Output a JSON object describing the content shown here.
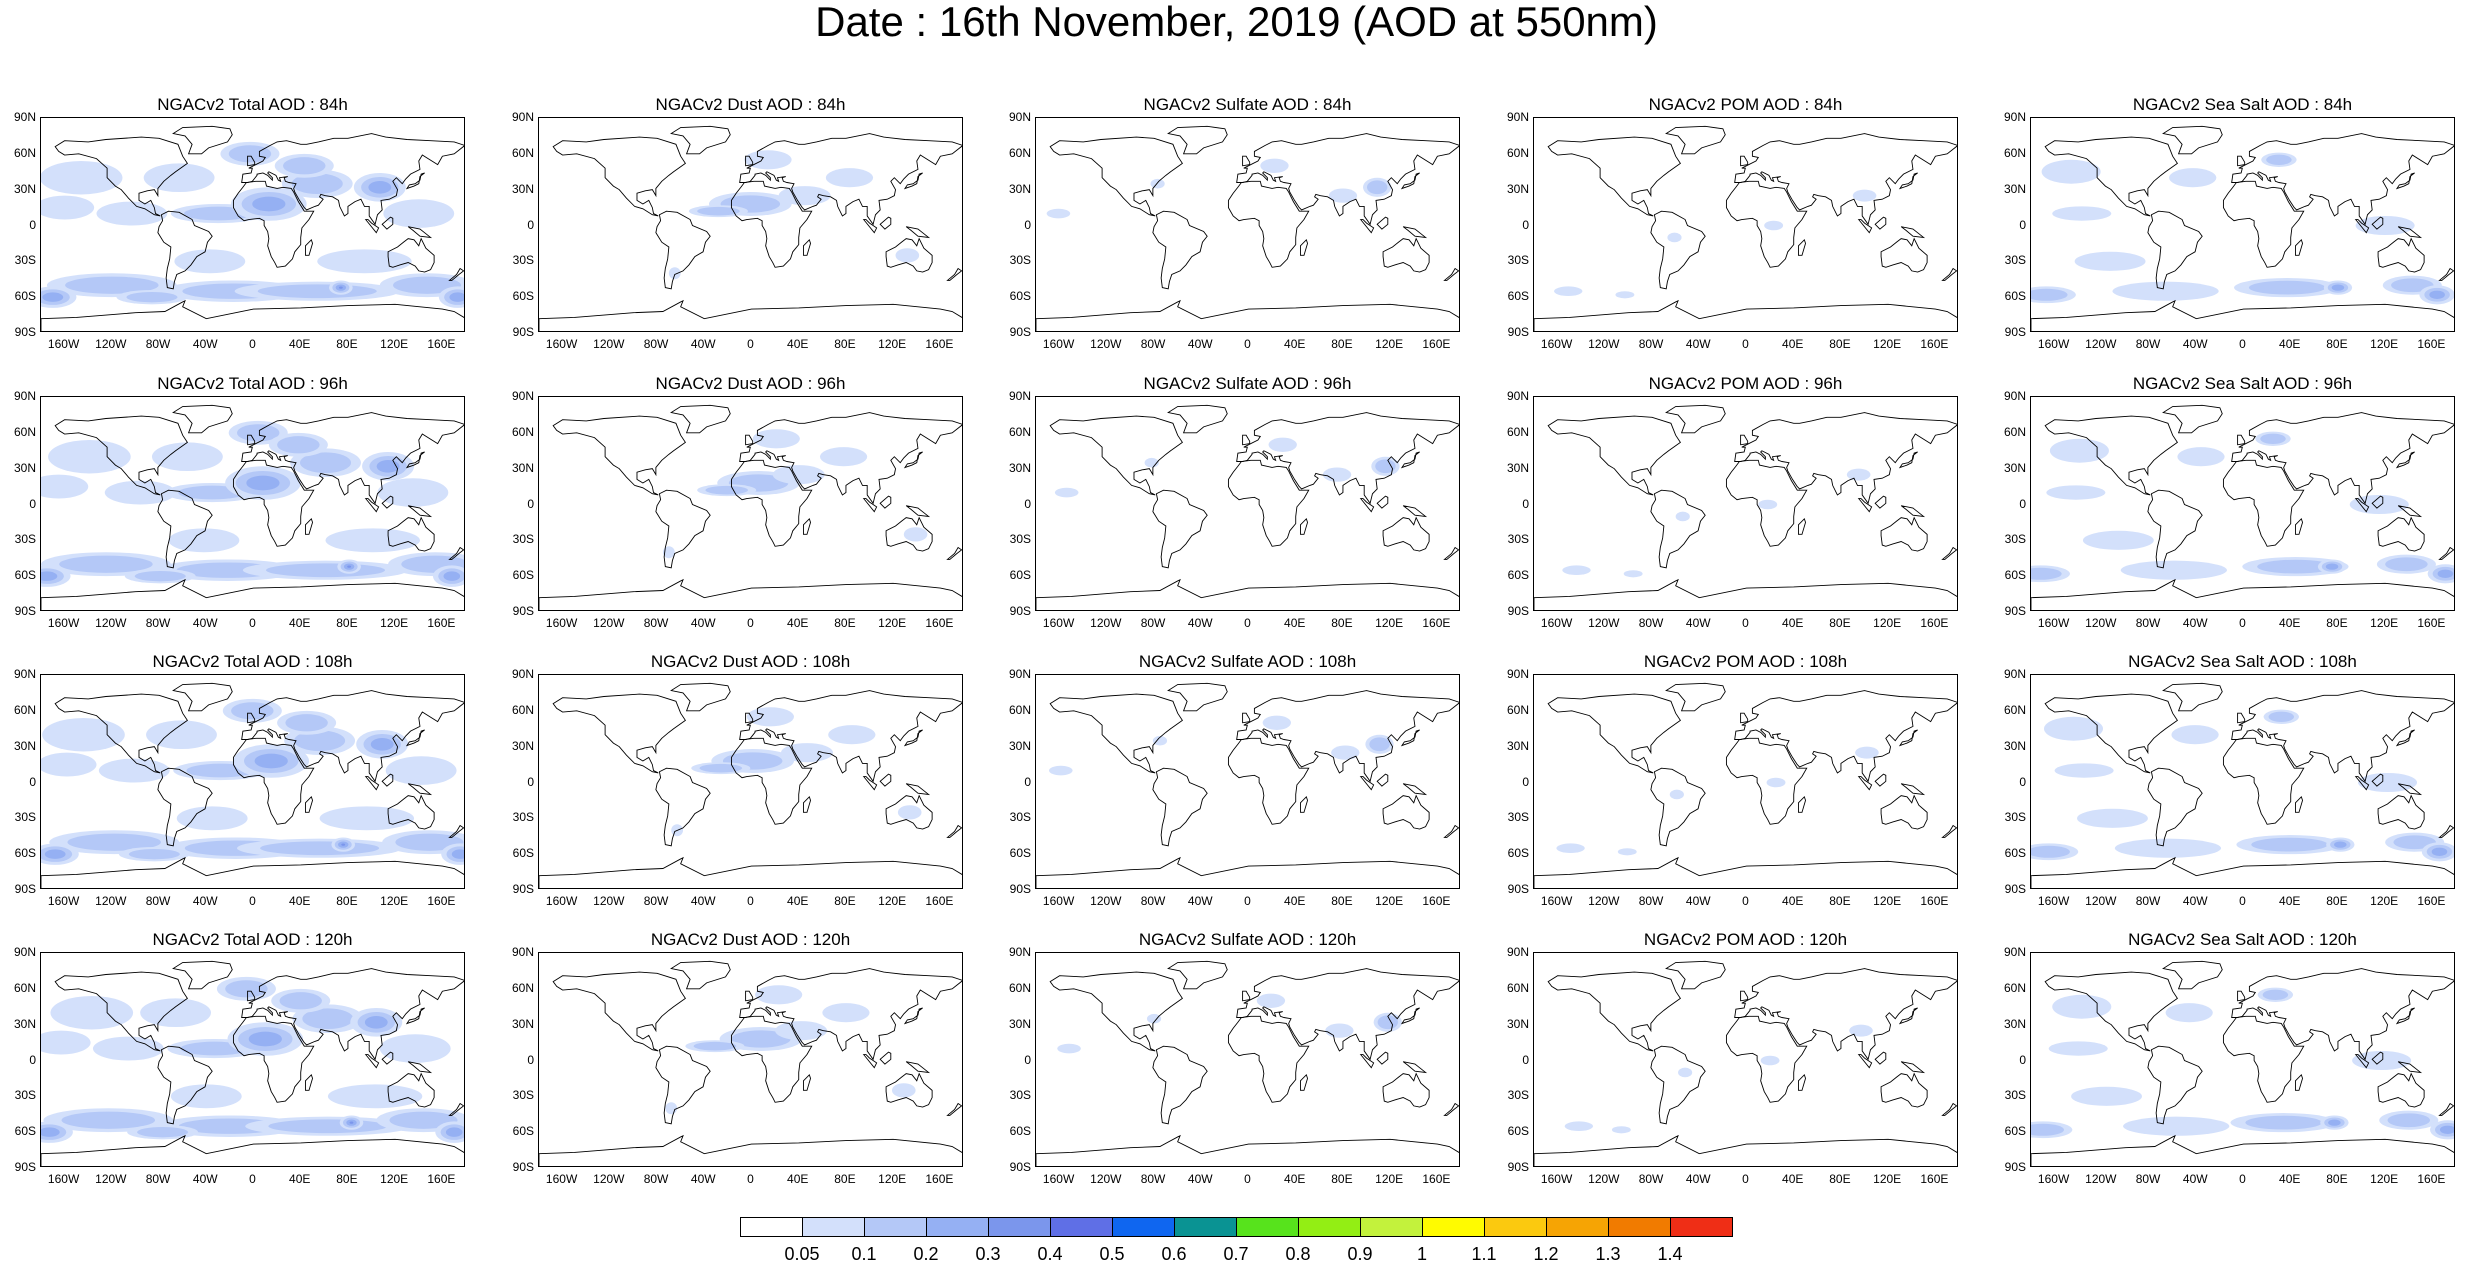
{
  "title": "Date : 16th November, 2019 (AOD at 550nm)",
  "panel_titles": [
    [
      "NGACv2 Total AOD : 84h",
      "NGACv2 Dust AOD : 84h",
      "NGACv2 Sulfate AOD : 84h",
      "NGACv2 POM AOD : 84h",
      "NGACv2 Sea Salt AOD : 84h"
    ],
    [
      "NGACv2 Total AOD : 96h",
      "NGACv2 Dust AOD : 96h",
      "NGACv2 Sulfate AOD : 96h",
      "NGACv2 POM AOD : 96h",
      "NGACv2 Sea Salt AOD : 96h"
    ],
    [
      "NGACv2 Total AOD : 108h",
      "NGACv2 Dust AOD : 108h",
      "NGACv2 Sulfate AOD : 108h",
      "NGACv2 POM AOD : 108h",
      "NGACv2 Sea Salt AOD : 108h"
    ],
    [
      "NGACv2 Total AOD : 120h",
      "NGACv2 Dust AOD : 120h",
      "NGACv2 Sulfate AOD : 120h",
      "NGACv2 POM AOD : 120h",
      "NGACv2 Sea Salt  AOD : 120h"
    ]
  ],
  "lat_ticks": [
    "90N",
    "60N",
    "30N",
    "0",
    "30S",
    "60S",
    "90S"
  ],
  "lon_ticks": [
    "160W",
    "120W",
    "80W",
    "40W",
    "0",
    "40E",
    "80E",
    "120E",
    "160E"
  ],
  "lon_tick_values": [
    -160,
    -120,
    -80,
    -40,
    0,
    40,
    80,
    120,
    160
  ],
  "lat_tick_values": [
    90,
    60,
    30,
    0,
    -30,
    -60,
    -90
  ],
  "colorbar": {
    "labels": [
      "0.05",
      "0.1",
      "0.2",
      "0.3",
      "0.4",
      "0.5",
      "0.6",
      "0.7",
      "0.8",
      "0.9",
      "1",
      "1.1",
      "1.2",
      "1.3",
      "1.4"
    ],
    "colors": [
      "#ffffff",
      "#d3e0fb",
      "#b4c8f7",
      "#95b0f3",
      "#7b96ec",
      "#5f6fe6",
      "#0f66f0",
      "#0a9393",
      "#57e31c",
      "#93ee14",
      "#c3f23c",
      "#fffb00",
      "#fbc90f",
      "#f6a404",
      "#f17b00",
      "#ef2e16"
    ]
  },
  "aerosol_density": {
    "total": "high",
    "dust": "low",
    "sulfate": "very-low",
    "pom": "very-low",
    "seasalt": "medium"
  }
}
